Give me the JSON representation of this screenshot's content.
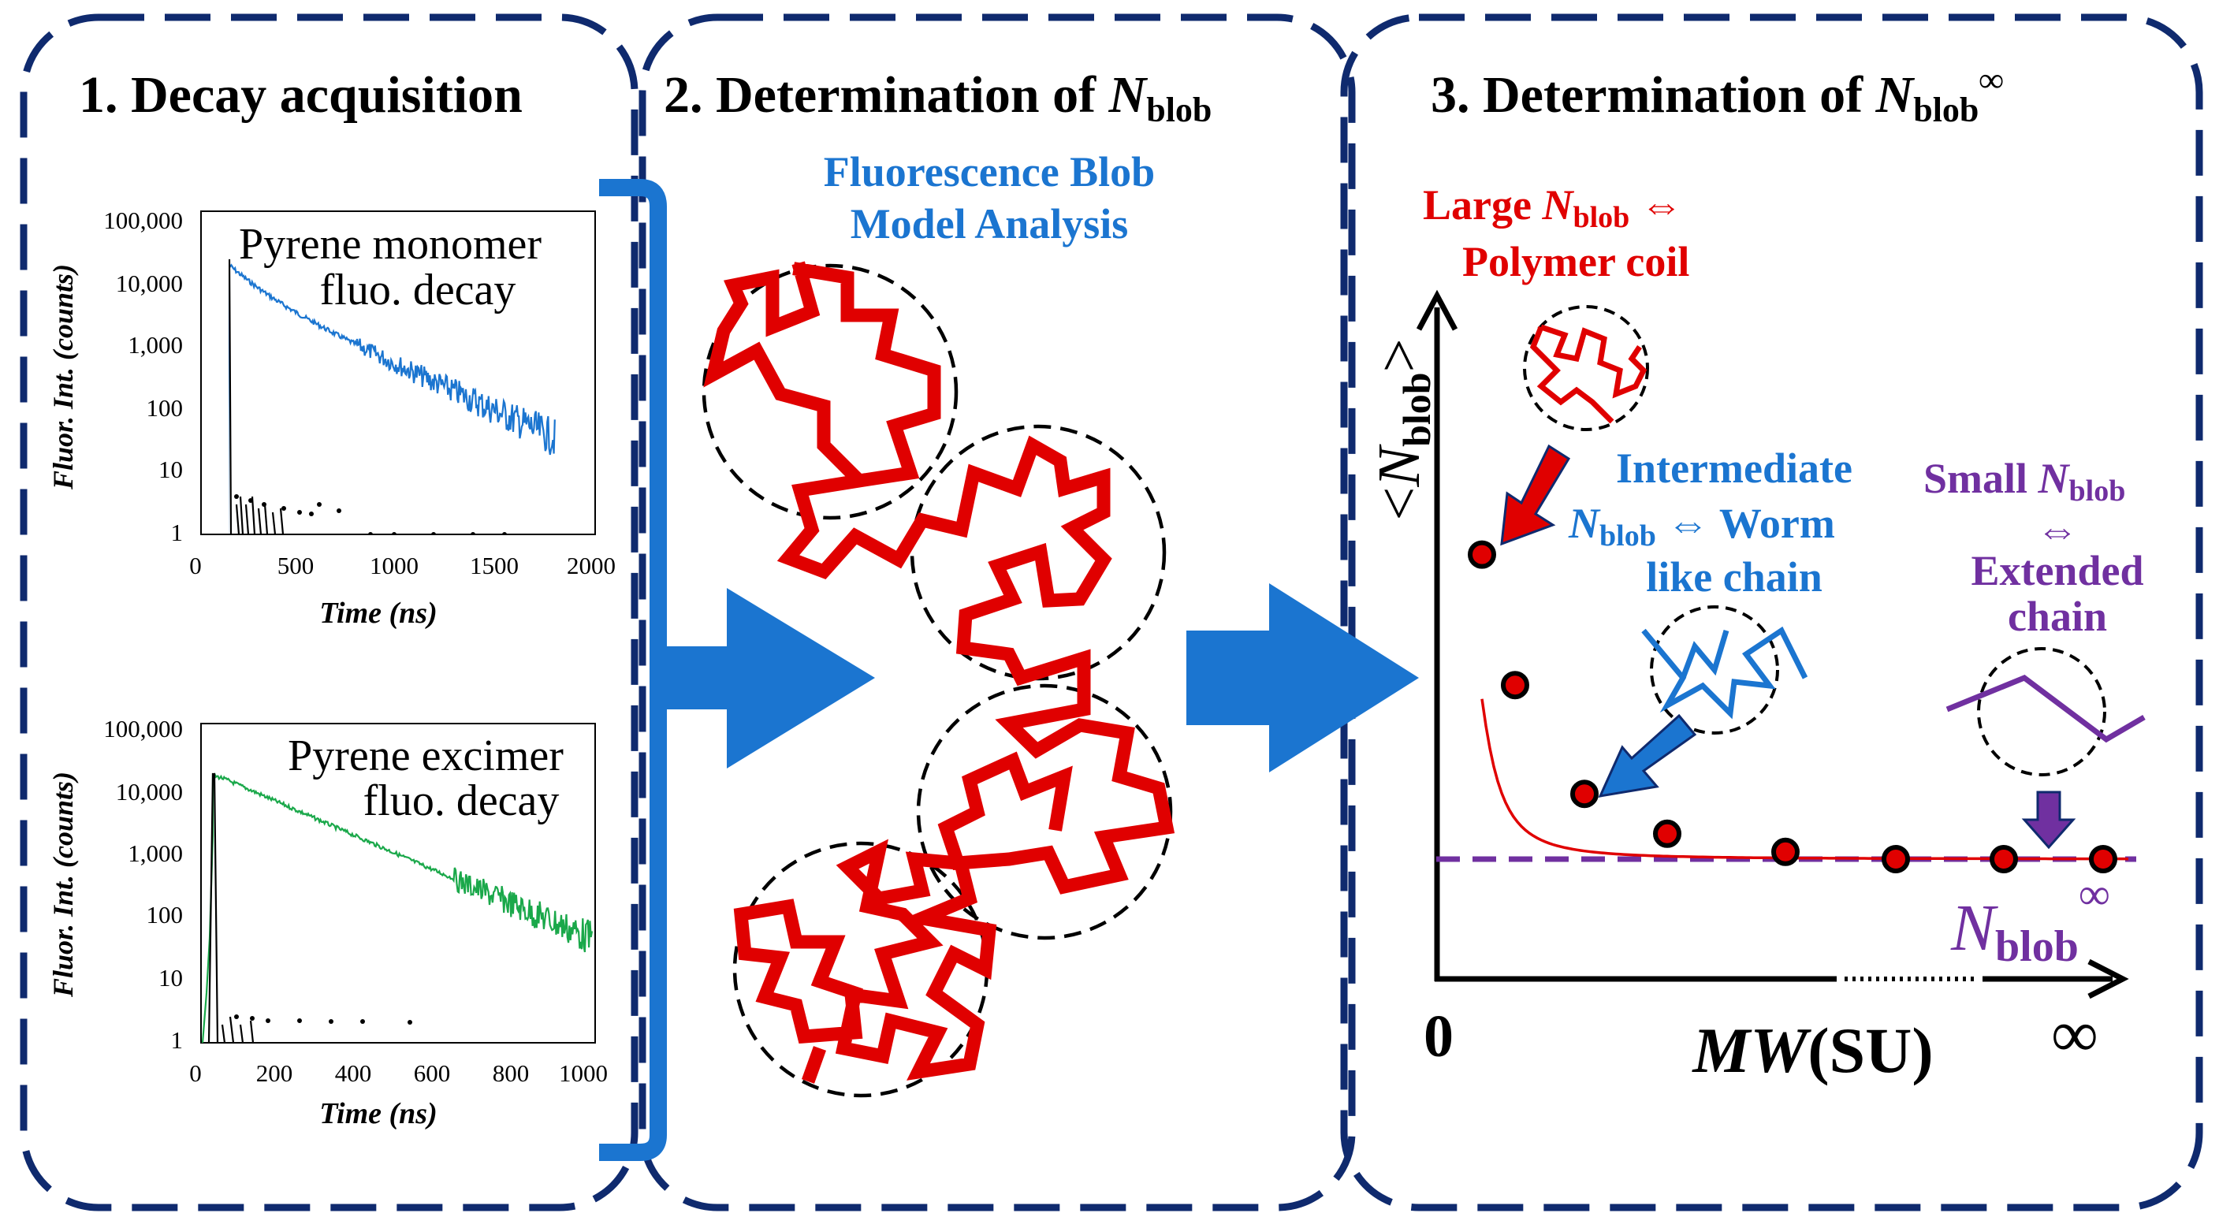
{
  "colors": {
    "frame": "#0f2a6e",
    "blue": "#1b75d0",
    "red": "#e00000",
    "purple": "#7030a0",
    "green": "#1aa84a",
    "black": "#000000"
  },
  "panel1": {
    "title": "1. Decay acquisition",
    "monomer": {
      "label_line1": "Pyrene monomer",
      "label_line2": "fluo. decay",
      "ylabel": "Fluor. Int. (counts)",
      "xlabel": "Time (ns)",
      "yticks": [
        "100,000",
        "10,000",
        "1,000",
        "100",
        "10",
        "1"
      ],
      "xticks": [
        "0",
        "500",
        "1000",
        "1500",
        "2000"
      ]
    },
    "excimer": {
      "label_line1": "Pyrene excimer",
      "label_line2": "fluo. decay",
      "ylabel": "Fluor. Int. (counts)",
      "xlabel": "Time (ns)",
      "yticks": [
        "100,000",
        "10,000",
        "1,000",
        "100",
        "10",
        "1"
      ],
      "xticks": [
        "0",
        "200",
        "400",
        "600",
        "800",
        "1000"
      ]
    }
  },
  "panel2": {
    "title_prefix": "2. Determination of ",
    "title_N": "N",
    "title_sub": "blob",
    "model_line1": "Fluorescence Blob",
    "model_line2": "Model Analysis"
  },
  "panel3": {
    "title_prefix": "3. Determination of ",
    "title_N": "N",
    "title_sub": "blob",
    "title_sup": "∞",
    "large_prefix": "Large ",
    "large_N": "N",
    "large_sub": "blob",
    "large_arrow": " ⇔",
    "large_line2": "Polymer coil",
    "inter_line1": "Intermediate",
    "inter_N": "N",
    "inter_sub": "blob",
    "inter_rest": " ⇔ Worm",
    "inter_line3": "like chain",
    "small_prefix": "Small ",
    "small_N": "N",
    "small_sub": "blob",
    "small_arrow": "⇔",
    "small_line3": "Extended",
    "small_line4": "chain",
    "yaxis_open": "<",
    "yaxis_N": "N",
    "yaxis_sub": "blob",
    "yaxis_close": ">",
    "x_origin": "0",
    "x_label_MW": "MW",
    "x_label_SU": "(SU)",
    "x_infinity": "∞",
    "asym_N": "N",
    "asym_sub": "blob",
    "asym_sup": "∞"
  },
  "chart_data": {
    "type": "scatter",
    "title": "3. Determination of Nblob∞",
    "xlabel": "MW(SU)",
    "ylabel": "<Nblob>",
    "x": [
      1,
      2,
      3,
      4,
      5,
      6,
      7,
      8
    ],
    "y": [
      5.2,
      3.4,
      1.9,
      1.35,
      1.1,
      1.0,
      1.0,
      1.0
    ],
    "asymptote": 1.0,
    "ylim": [
      0,
      8
    ]
  }
}
